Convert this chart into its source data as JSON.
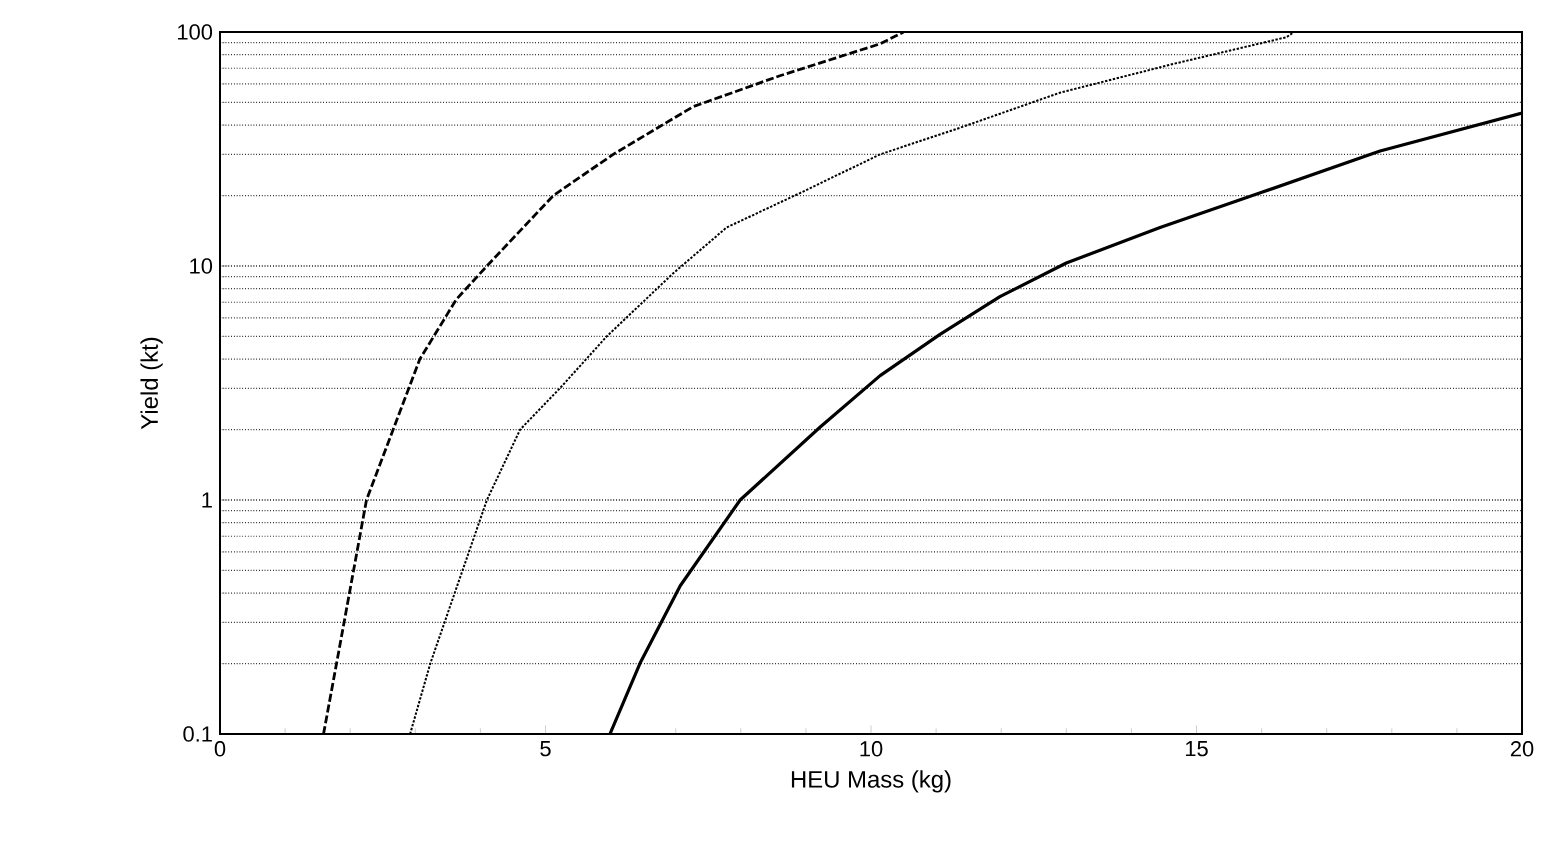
{
  "chart_data": {
    "type": "line",
    "xlabel": "HEU Mass (kg)",
    "ylabel": "Yield (kt)",
    "log": "y",
    "grid": "y",
    "marker": "none",
    "xlim": [
      0,
      20
    ],
    "ylim": [
      0.1,
      100
    ],
    "xticks": [
      0,
      5,
      10,
      15,
      20
    ],
    "yticks": [
      0.1,
      1,
      10,
      100
    ],
    "series": [
      {
        "color": "#000000",
        "line_style": "dashed",
        "x": [
          1.59,
          1.79,
          2.25,
          2.66,
          3.07,
          3.63,
          4.1,
          5.12,
          6.04,
          7.27,
          8.6,
          10.14,
          10.5
        ],
        "values": [
          0.1,
          0.2,
          1,
          2,
          4,
          7.2,
          10,
          20,
          30,
          48,
          65,
          89,
          100
        ]
      },
      {
        "color": "#000000",
        "line_style": "dotted",
        "x": [
          2.92,
          3.23,
          4.1,
          4.61,
          5.22,
          5.94,
          6.96,
          7.78,
          8.91,
          10.14,
          11.37,
          12.9,
          14.64,
          16.38,
          16.5
        ],
        "values": [
          0.1,
          0.2,
          1,
          2,
          3,
          5,
          9.3,
          14.6,
          20.5,
          30,
          39,
          55,
          73,
          95,
          100
        ]
      },
      {
        "color": "#000000",
        "line_style": "solid",
        "x": [
          5.99,
          6.45,
          7.07,
          7.99,
          9.22,
          10.14,
          11.06,
          11.98,
          13.0,
          14.44,
          15.97,
          17.82,
          20
        ],
        "values": [
          0.1,
          0.2,
          0.43,
          1,
          2.05,
          3.4,
          5.1,
          7.4,
          10.3,
          14.6,
          20.5,
          31,
          45
        ]
      }
    ]
  }
}
